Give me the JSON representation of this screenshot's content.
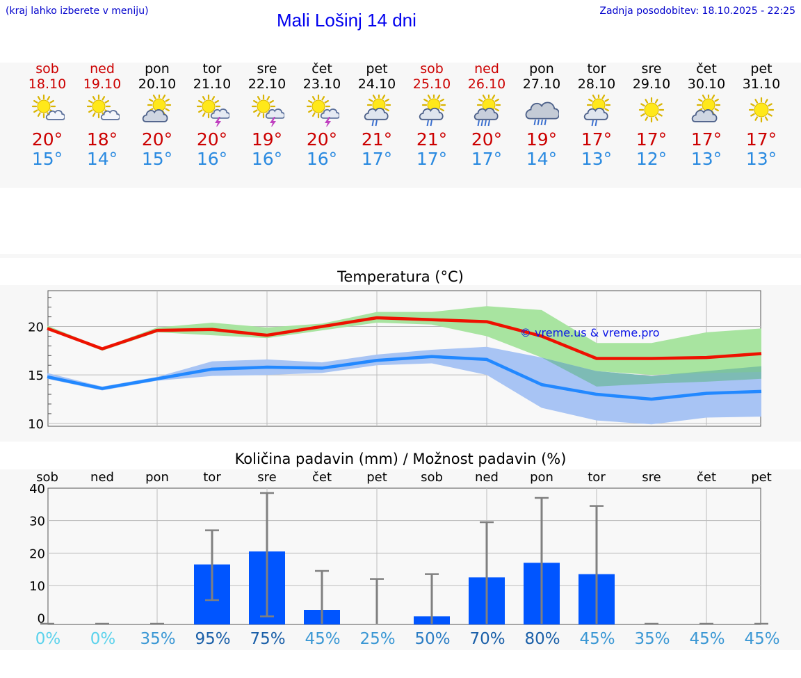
{
  "header": {
    "menu_hint": "(kraj lahko izberete v meniju)",
    "title": "Mali Lošinj 14 dni",
    "updated": "Zadnja posodobitev: 18.10.2025 - 22:25"
  },
  "forecast": [
    {
      "day": "sob",
      "date": "18.10",
      "weekend": true,
      "icon": "sun-cloud",
      "tmax": "20°",
      "tmin": "15°"
    },
    {
      "day": "ned",
      "date": "19.10",
      "weekend": true,
      "icon": "sun-cloud",
      "tmax": "18°",
      "tmin": "14°"
    },
    {
      "day": "pon",
      "date": "20.10",
      "weekend": false,
      "icon": "sun-big-cloud",
      "tmax": "20°",
      "tmin": "15°"
    },
    {
      "day": "tor",
      "date": "21.10",
      "weekend": false,
      "icon": "sun-cloud-storm",
      "tmax": "20°",
      "tmin": "16°"
    },
    {
      "day": "sre",
      "date": "22.10",
      "weekend": false,
      "icon": "sun-cloud-storm",
      "tmax": "19°",
      "tmin": "16°"
    },
    {
      "day": "čet",
      "date": "23.10",
      "weekend": false,
      "icon": "sun-cloud-storm",
      "tmax": "20°",
      "tmin": "16°"
    },
    {
      "day": "pet",
      "date": "24.10",
      "weekend": false,
      "icon": "sun-cloud-rain",
      "tmax": "21°",
      "tmin": "17°"
    },
    {
      "day": "sob",
      "date": "25.10",
      "weekend": true,
      "icon": "sun-cloud-rain",
      "tmax": "21°",
      "tmin": "17°"
    },
    {
      "day": "ned",
      "date": "26.10",
      "weekend": true,
      "icon": "sun-cloud-heavy-rain",
      "tmax": "20°",
      "tmin": "17°"
    },
    {
      "day": "pon",
      "date": "27.10",
      "weekend": false,
      "icon": "cloud-heavy-rain",
      "tmax": "19°",
      "tmin": "14°"
    },
    {
      "day": "tor",
      "date": "28.10",
      "weekend": false,
      "icon": "sun-cloud-rain",
      "tmax": "17°",
      "tmin": "13°"
    },
    {
      "day": "sre",
      "date": "29.10",
      "weekend": false,
      "icon": "sun",
      "tmax": "17°",
      "tmin": "12°"
    },
    {
      "day": "čet",
      "date": "30.10",
      "weekend": false,
      "icon": "sun-big-cloud",
      "tmax": "17°",
      "tmin": "13°"
    },
    {
      "day": "pet",
      "date": "31.10",
      "weekend": false,
      "icon": "sun",
      "tmax": "17°",
      "tmin": "13°"
    }
  ],
  "colors": {
    "max_line": "#ee1100",
    "max_band": "#a8e4a0",
    "min_line": "#2288ff",
    "min_band": "#a8c4f4",
    "bar": "#0055ff",
    "whisker": "#808080",
    "weekend": "#cc0000"
  },
  "chart_data": [
    {
      "type": "line",
      "title": "Temperatura (°C)",
      "watermark": "© vreme.us & vreme.pro",
      "categories": [
        "18.10",
        "19.10",
        "20.10",
        "21.10",
        "22.10",
        "23.10",
        "24.10",
        "25.10",
        "26.10",
        "27.10",
        "28.10",
        "29.10",
        "30.10",
        "31.10"
      ],
      "ylim": [
        9.7,
        23.7
      ],
      "yticks": [
        10,
        15,
        20
      ],
      "series": [
        {
          "name": "max",
          "values": [
            19.8,
            17.7,
            19.6,
            19.7,
            19.1,
            20.0,
            20.9,
            20.7,
            20.5,
            19.0,
            16.7,
            16.7,
            16.8,
            17.2
          ],
          "band_low": [
            19.7,
            17.5,
            19.4,
            19.1,
            18.8,
            19.6,
            20.4,
            20.2,
            19.0,
            16.8,
            15.4,
            15.0,
            15.2,
            15.3
          ],
          "band_high": [
            20.1,
            17.8,
            19.9,
            20.4,
            19.9,
            20.3,
            21.5,
            21.5,
            22.1,
            21.7,
            18.3,
            18.3,
            19.4,
            19.8
          ]
        },
        {
          "name": "min",
          "values": [
            14.8,
            13.6,
            14.6,
            15.6,
            15.8,
            15.7,
            16.5,
            16.9,
            16.6,
            14.0,
            13.0,
            12.5,
            13.1,
            13.3
          ],
          "band_low": [
            14.6,
            13.4,
            14.4,
            14.9,
            15.0,
            15.2,
            16.0,
            16.2,
            15.0,
            11.6,
            10.3,
            9.9,
            10.6,
            10.7
          ],
          "band_high": [
            15.2,
            13.8,
            14.8,
            16.4,
            16.6,
            16.3,
            17.1,
            17.6,
            17.9,
            16.8,
            15.4,
            14.9,
            15.4,
            15.9
          ]
        },
        {
          "name": "overlap",
          "band_low": [
            null,
            null,
            null,
            null,
            null,
            null,
            null,
            null,
            null,
            16.8,
            13.8,
            14.1,
            14.3,
            14.6
          ],
          "band_high": [
            null,
            null,
            null,
            null,
            null,
            null,
            null,
            null,
            null,
            16.8,
            15.4,
            14.9,
            15.4,
            15.9
          ]
        }
      ]
    },
    {
      "type": "bar",
      "title": "Količina padavin (mm) / Možnost padavin (%)",
      "categories": [
        "sob",
        "ned",
        "pon",
        "tor",
        "sre",
        "čet",
        "pet",
        "sob",
        "ned",
        "pon",
        "tor",
        "sre",
        "čet",
        "pet"
      ],
      "ylim": [
        -2,
        40
      ],
      "yticks": [
        0,
        10,
        20,
        30,
        40
      ],
      "values": [
        0,
        0,
        0,
        16.5,
        20.5,
        2.5,
        0,
        0.5,
        12.5,
        17,
        13.5,
        0,
        0,
        0
      ],
      "err_low": [
        0,
        0,
        0,
        5.5,
        0.5,
        0,
        0,
        0,
        0,
        0,
        0,
        0,
        0,
        0
      ],
      "err_high": [
        0,
        0,
        0,
        27,
        38.5,
        14.5,
        12,
        13.5,
        29.5,
        37,
        34.5,
        0,
        0,
        0
      ],
      "probabilities": [
        "0%",
        "0%",
        "35%",
        "95%",
        "75%",
        "45%",
        "25%",
        "50%",
        "70%",
        "80%",
        "45%",
        "35%",
        "45%",
        "45%"
      ],
      "prob_colors": [
        "#5bd2ec",
        "#5bd2ec",
        "#3a97d4",
        "#1a5fa8",
        "#1a5fa8",
        "#3a97d4",
        "#3a97d4",
        "#2a7cc4",
        "#1a5fa8",
        "#1a5fa8",
        "#3a97d4",
        "#3a97d4",
        "#3a97d4",
        "#3a97d4"
      ]
    }
  ]
}
